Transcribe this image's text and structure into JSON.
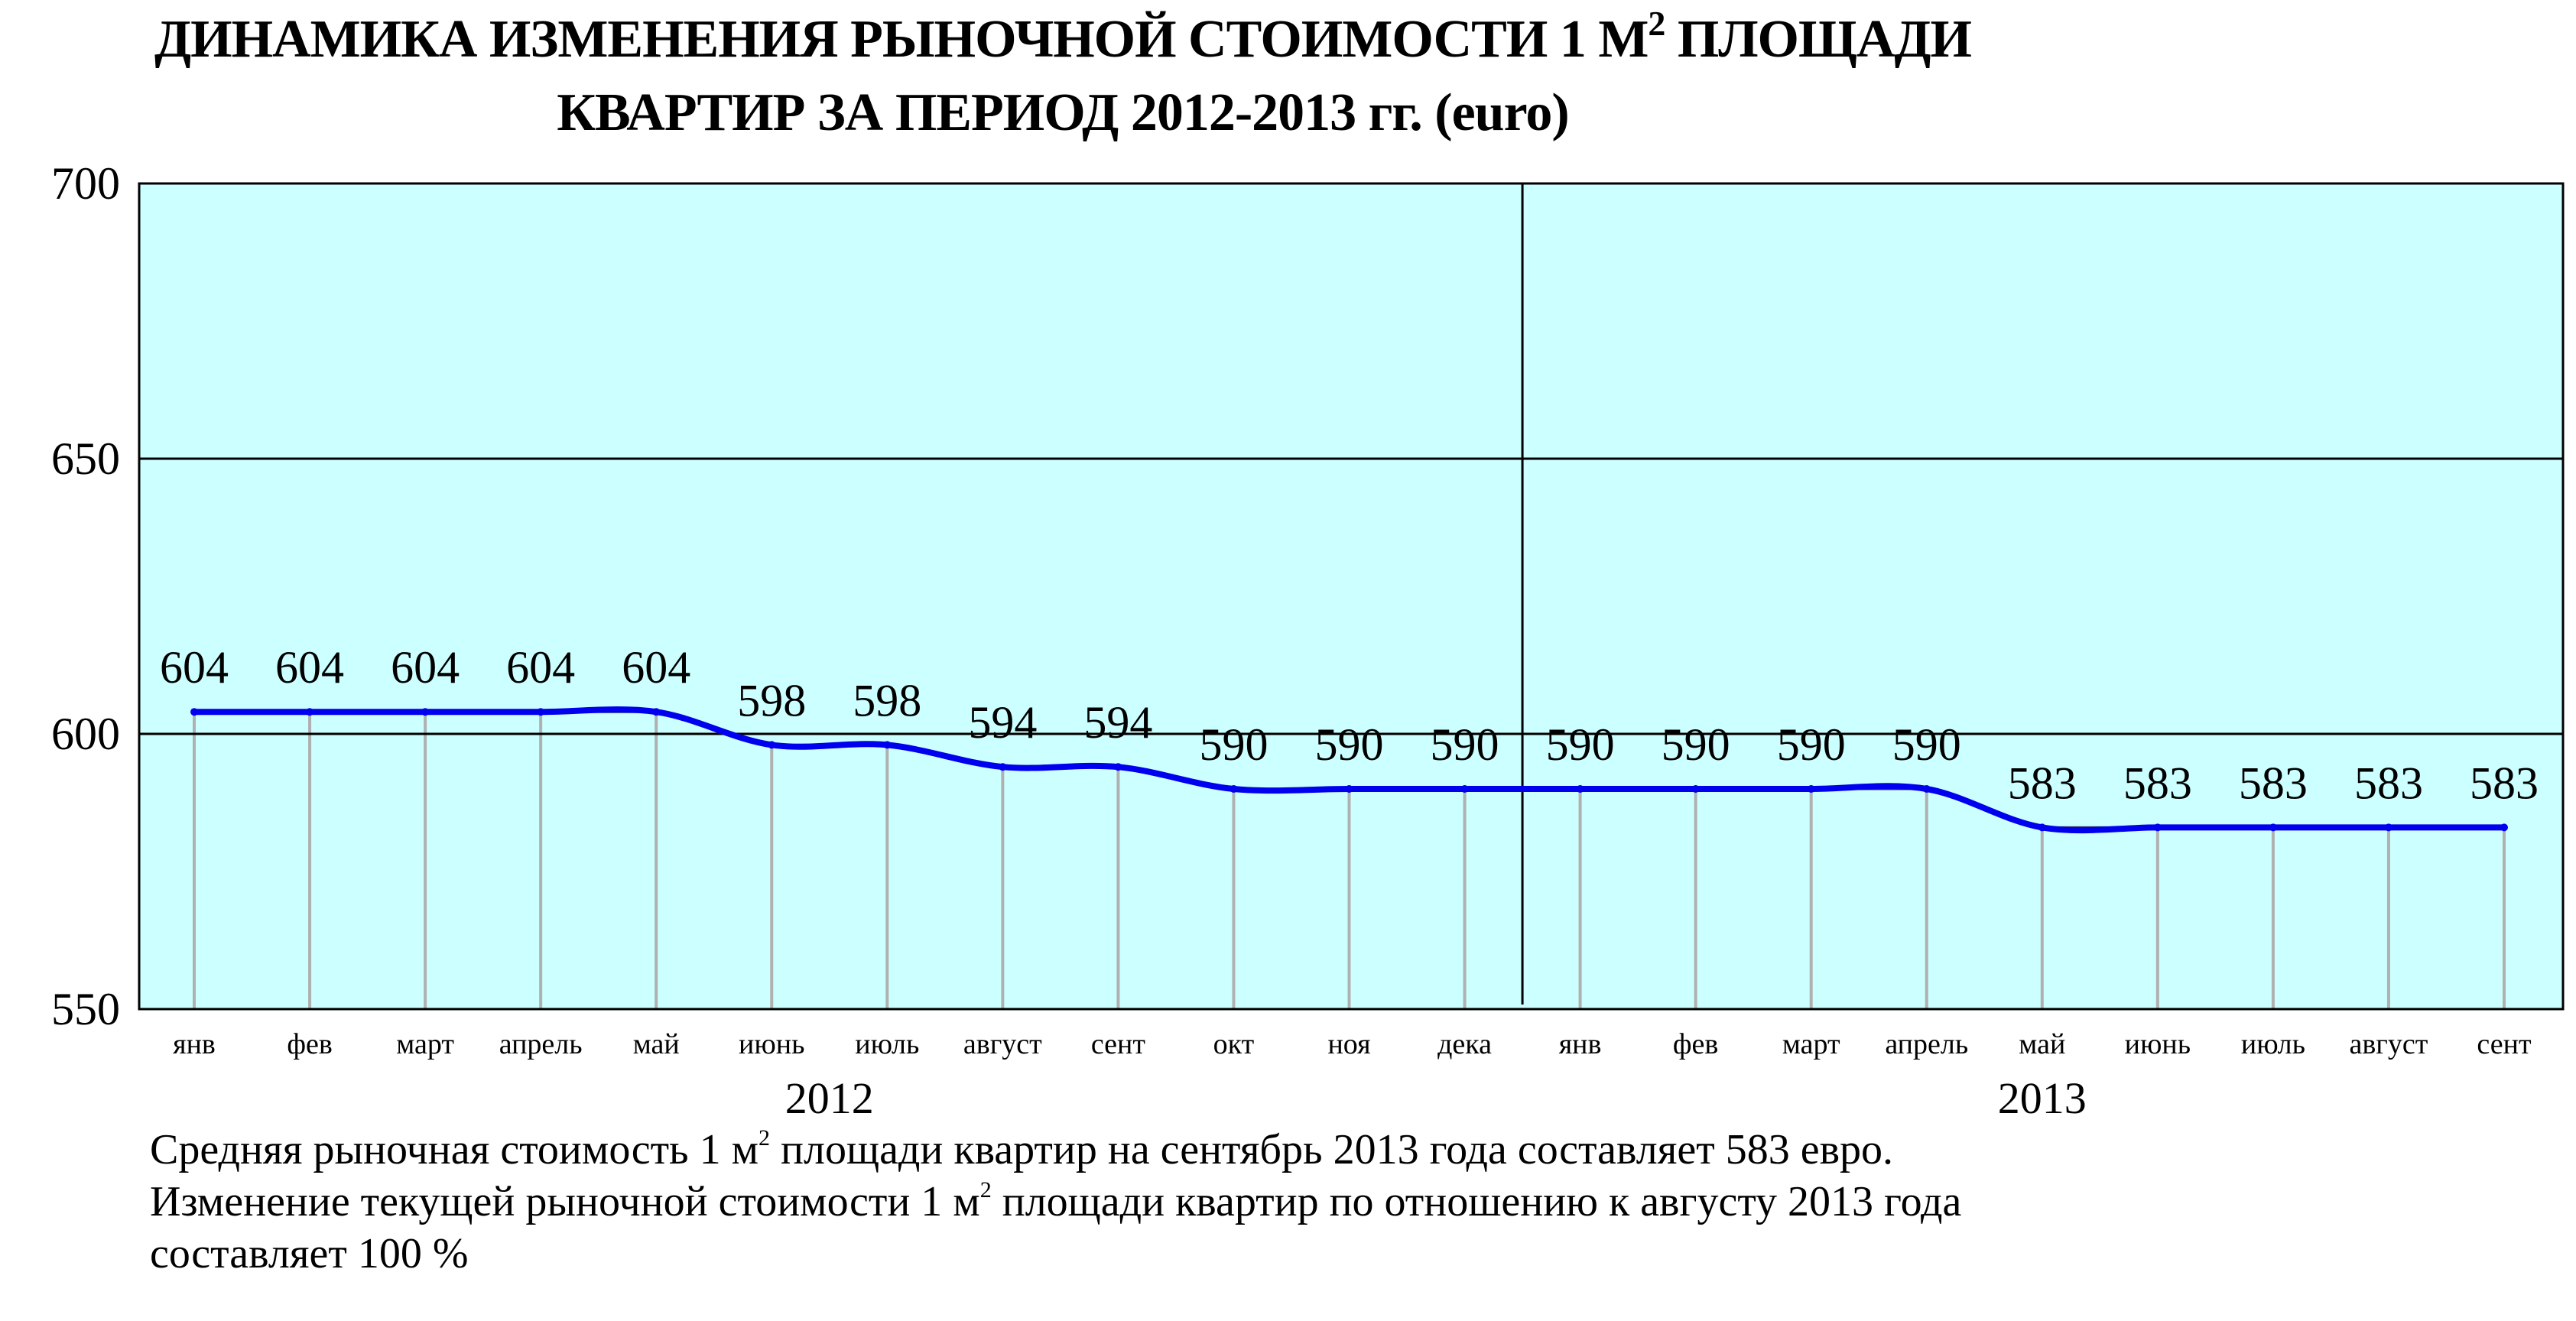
{
  "title": {
    "line1_before_sup": "ДИНАМИКА ИЗМЕНЕНИЯ РЫНОЧНОЙ СТОИМОСТИ 1 М",
    "line1_sup": "2",
    "line1_after_sup": " ПЛОЩАДИ",
    "line2": "КВАРТИР ЗА ПЕРИОД 2012-2013 гг. (euro)"
  },
  "chart_data": {
    "type": "line",
    "title": "ДИНАМИКА ИЗМЕНЕНИЯ РЫНОЧНОЙ СТОИМОСТИ 1 М2 ПЛОЩАДИ КВАРТИР ЗА ПЕРИОД 2012-2013 гг. (euro)",
    "categories": [
      "янв",
      "фев",
      "март",
      "апрель",
      "май",
      "июнь",
      "июль",
      "август",
      "сент",
      "окт",
      "ноя",
      "дека",
      "янв",
      "фев",
      "март",
      "апрель",
      "май",
      "июнь",
      "июль",
      "август",
      "сент"
    ],
    "values": [
      604,
      604,
      604,
      604,
      604,
      598,
      598,
      594,
      594,
      590,
      590,
      590,
      590,
      590,
      590,
      590,
      583,
      583,
      583,
      583,
      583
    ],
    "year_groups": [
      {
        "label": "2012",
        "start": 0,
        "end": 11
      },
      {
        "label": "2013",
        "start": 12,
        "end": 20
      }
    ],
    "ylim": [
      550,
      700
    ],
    "yticks": [
      550,
      600,
      650,
      700
    ],
    "xlabel": "",
    "ylabel": "",
    "grid": true,
    "colors": {
      "plot_bg": "#ccffff",
      "line": "#0000ee",
      "drop_lines": "#b0b0b0"
    }
  },
  "caption": {
    "line1_before_sup": "Средняя рыночная стоимость 1 м",
    "line1_sup": "2",
    "line1_after_sup": " площади квартир на сентябрь 2013 года составляет 583 евро.",
    "line2_before_sup": "Изменение текущей рыночной стоимости 1 м",
    "line2_sup": "2",
    "line2_after_sup": " площади квартир по отношению к августу 2013 года",
    "line3": "составляет  100 %"
  }
}
